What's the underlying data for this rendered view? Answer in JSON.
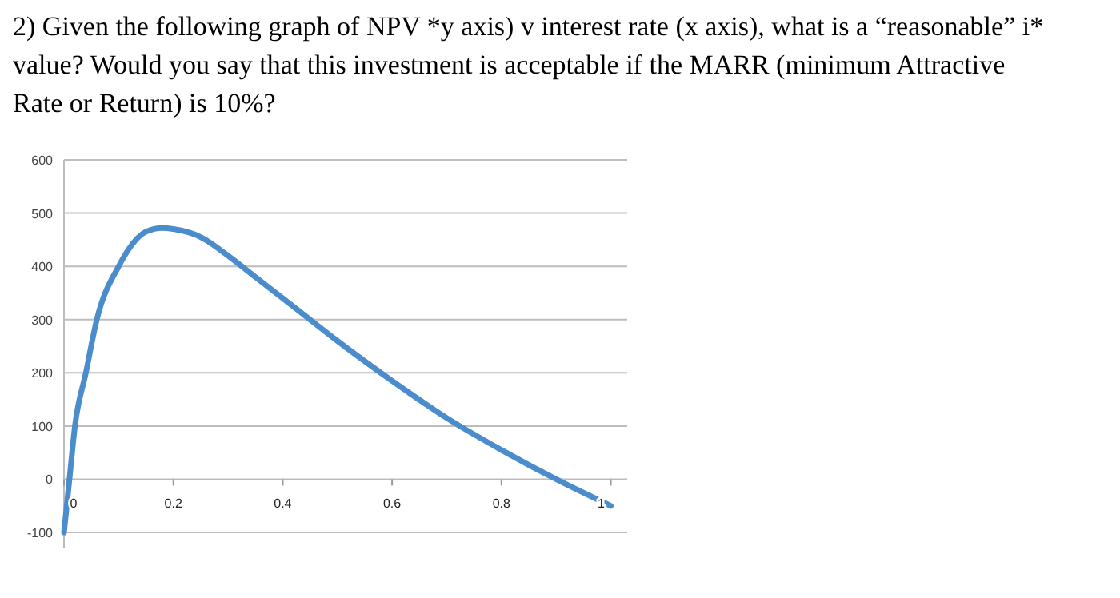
{
  "chart_data": {
    "type": "line",
    "title": "2) Given the following graph of NPV *y axis) v interest rate (x axis), what is a “reasonable” i* value? Would you say that this investment is acceptable if the MARR (minimum Attractive Rate or Return) is 10%?",
    "x": [
      0,
      0.01,
      0.02,
      0.04,
      0.06,
      0.1,
      0.15,
      0.18,
      0.2,
      0.25,
      0.3,
      0.35,
      0.4,
      0.45,
      0.5,
      0.6,
      0.7,
      0.8,
      0.9,
      1
    ],
    "series": [
      {
        "color": "#4a8ccc",
        "values": [
          -100,
          0,
          100,
          200,
          300,
          400,
          465,
          472,
          470,
          455,
          420,
          380,
          340,
          300,
          260,
          185,
          115,
          55,
          0,
          -50
        ]
      }
    ],
    "xlim": [
      0,
      1.03
    ],
    "xticks": [
      0,
      0.2,
      0.4,
      0.6,
      0.8,
      1
    ],
    "ylim": [
      -130,
      600
    ],
    "yticks": [
      -100,
      0,
      100,
      200,
      300,
      400,
      500,
      600
    ],
    "grid": "y",
    "marker": "none",
    "line_style": "solid"
  }
}
